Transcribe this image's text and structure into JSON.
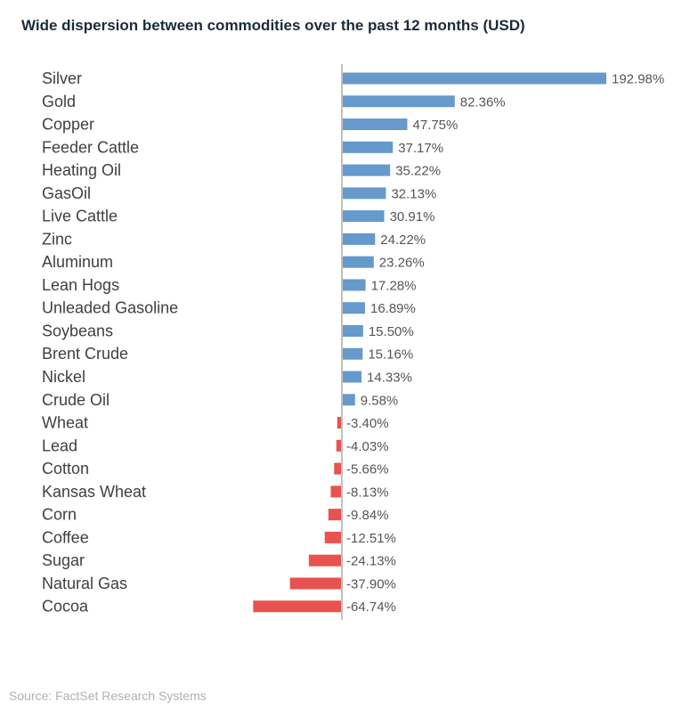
{
  "chart_data": {
    "type": "bar",
    "orientation": "horizontal",
    "title": "Wide dispersion between commodities over the past 12 months (USD)",
    "source": "Source: FactSet Research Systems",
    "xlabel": "",
    "ylabel": "",
    "value_suffix": "%",
    "grid": false,
    "categories": [
      "Silver",
      "Gold",
      "Copper",
      "Feeder Cattle",
      "Heating Oil",
      "GasOil",
      "Live Cattle",
      "Zinc",
      "Aluminum",
      "Lean Hogs",
      "Unleaded Gasoline",
      "Soybeans",
      "Brent Crude",
      "Nickel",
      "Crude Oil",
      "Wheat",
      "Lead",
      "Cotton",
      "Kansas Wheat",
      "Corn",
      "Coffee",
      "Sugar",
      "Natural Gas",
      "Cocoa"
    ],
    "values": [
      192.98,
      82.36,
      47.75,
      37.17,
      35.22,
      32.13,
      30.91,
      24.22,
      23.26,
      17.28,
      16.89,
      15.5,
      15.16,
      14.33,
      9.58,
      -3.4,
      -4.03,
      -5.66,
      -8.13,
      -9.84,
      -12.51,
      -24.13,
      -37.9,
      -64.74
    ],
    "labels": [
      "192.98%",
      "82.36%",
      "47.75%",
      "37.17%",
      "35.22%",
      "32.13%",
      "30.91%",
      "24.22%",
      "23.26%",
      "17.28%",
      "16.89%",
      "15.50%",
      "15.16%",
      "14.33%",
      "9.58%",
      "-3.40%",
      "-4.03%",
      "-5.66%",
      "-8.13%",
      "-9.84%",
      "-12.51%",
      "-24.13%",
      "-37.90%",
      "-64.74%"
    ],
    "colors": {
      "positive": "#6699cc",
      "negative": "#e8524f",
      "axis": "#c0c0c0"
    }
  }
}
